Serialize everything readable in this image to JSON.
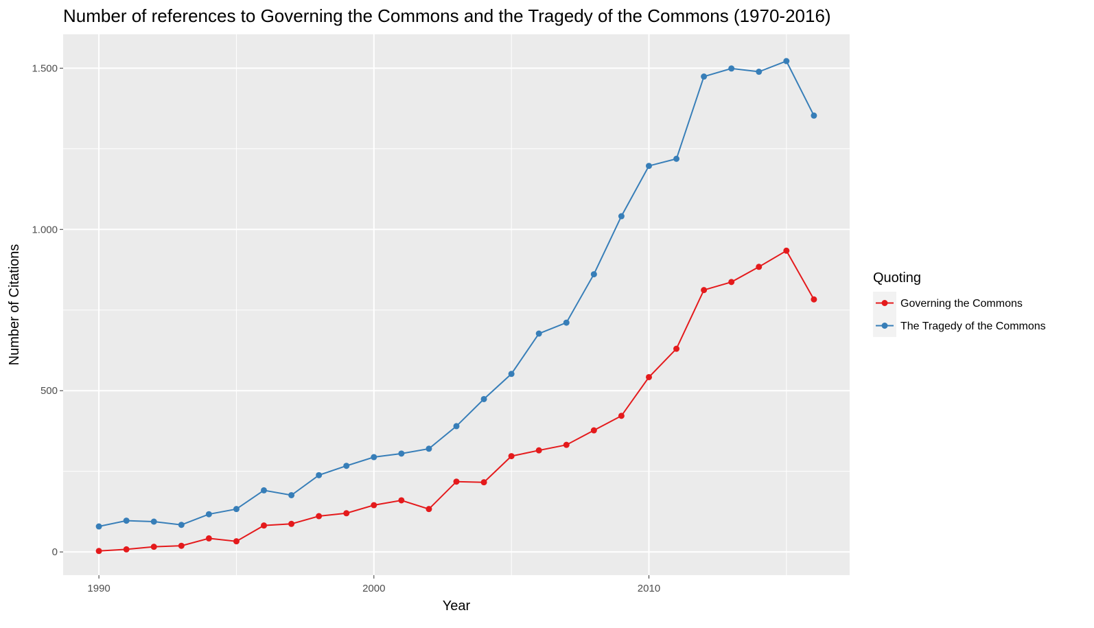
{
  "chart_data": {
    "type": "line",
    "title": "Number of references to Governing the Commons and the Tragedy of the Commons (1970-2016)",
    "xlabel": "Year",
    "ylabel": "Number of Citations",
    "xlim": [
      1988.7,
      2017.3
    ],
    "ylim": [
      -72,
      1605
    ],
    "x_ticks": [
      1990,
      2000,
      2010
    ],
    "x_tick_labels": [
      "1990",
      "2000",
      "2010"
    ],
    "y_ticks": [
      0,
      500,
      1000,
      1500
    ],
    "y_tick_labels": [
      "0",
      "500",
      "1.000",
      "1.500"
    ],
    "grid": true,
    "legend": {
      "title": "Quoting",
      "position": "right"
    },
    "x": [
      1990,
      1991,
      1992,
      1993,
      1994,
      1995,
      1996,
      1997,
      1998,
      1999,
      2000,
      2001,
      2002,
      2003,
      2004,
      2005,
      2006,
      2007,
      2008,
      2009,
      2010,
      2011,
      2012,
      2013,
      2014,
      2015,
      2016
    ],
    "series": [
      {
        "name": "Governing the Commons",
        "color": "#e41a1c",
        "values": [
          3,
          8,
          16,
          19,
          42,
          33,
          82,
          87,
          111,
          120,
          145,
          160,
          133,
          218,
          216,
          297,
          315,
          332,
          377,
          422,
          542,
          630,
          812,
          837,
          884,
          934,
          783
        ]
      },
      {
        "name": "The Tragedy of the Commons",
        "color": "#377eb8",
        "values": [
          79,
          97,
          94,
          84,
          117,
          133,
          191,
          176,
          238,
          267,
          294,
          305,
          320,
          390,
          474,
          552,
          677,
          711,
          861,
          1041,
          1197,
          1219,
          1474,
          1499,
          1489,
          1522,
          1353
        ]
      }
    ]
  }
}
